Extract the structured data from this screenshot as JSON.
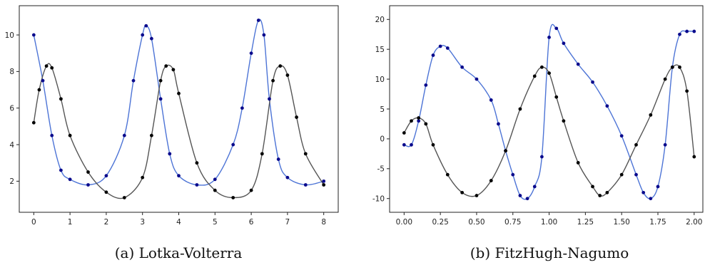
{
  "chart_data": [
    {
      "type": "scatter",
      "caption": "(a) Lotka-Volterra",
      "title": "",
      "xlabel": "",
      "ylabel": "",
      "xlim": [
        -0.4,
        8.4
      ],
      "ylim": [
        0.3,
        11.6
      ],
      "xticks": [
        "0",
        "1",
        "2",
        "3",
        "4",
        "5",
        "6",
        "7",
        "8"
      ],
      "yticks": [
        "2",
        "4",
        "6",
        "8",
        "10"
      ],
      "grid": false,
      "colors": {
        "blue_points": "#0a0a8c",
        "blue_line": "#4d74d6",
        "black_points": "#000000",
        "black_line": "#555555"
      },
      "series": [
        {
          "color": "blue",
          "x": [
            0,
            0.25,
            0.5,
            0.75,
            1,
            1.5,
            2,
            2.5,
            2.75,
            3,
            3.1,
            3.25,
            3.5,
            3.75,
            4,
            4.5,
            5,
            5.5,
            5.75,
            6,
            6.2,
            6.35,
            6.5,
            6.75,
            7,
            7.5,
            8
          ],
          "y": [
            10,
            7.5,
            4.5,
            2.6,
            2.1,
            1.8,
            2.3,
            4.5,
            7.5,
            10,
            10.5,
            9.8,
            6.5,
            3.5,
            2.3,
            1.8,
            2.1,
            4.0,
            6.0,
            9.0,
            10.8,
            10.0,
            6.5,
            3.2,
            2.2,
            1.8,
            2.0
          ]
        },
        {
          "color": "black",
          "x": [
            0,
            0.15,
            0.35,
            0.5,
            0.75,
            1,
            1.5,
            2,
            2.5,
            3,
            3.25,
            3.5,
            3.65,
            3.85,
            4,
            4.5,
            5,
            5.5,
            6,
            6.3,
            6.6,
            6.8,
            7,
            7.25,
            7.5,
            8
          ],
          "y": [
            5.2,
            7.0,
            8.3,
            8.2,
            6.5,
            4.5,
            2.5,
            1.4,
            1.1,
            2.2,
            4.5,
            7.5,
            8.3,
            8.1,
            6.8,
            3.0,
            1.5,
            1.1,
            1.5,
            3.5,
            7.5,
            8.3,
            7.8,
            5.5,
            3.5,
            1.8
          ]
        }
      ]
    },
    {
      "type": "scatter",
      "caption": "(b) FitzHugh-Nagumo",
      "title": "",
      "xlabel": "",
      "ylabel": "",
      "xlim": [
        -0.1,
        2.06
      ],
      "ylim": [
        -12.3,
        22.3
      ],
      "xticks": [
        "0.00",
        "0.25",
        "0.50",
        "0.75",
        "1.00",
        "1.25",
        "1.50",
        "1.75",
        "2.00"
      ],
      "yticks": [
        "20",
        "15",
        "10",
        "5",
        "0",
        "-5",
        "-10"
      ],
      "grid": false,
      "colors": {
        "blue_points": "#0a0a8c",
        "blue_line": "#4d74d6",
        "black_points": "#000000",
        "black_line": "#555555"
      },
      "series": [
        {
          "color": "blue",
          "x": [
            0,
            0.05,
            0.1,
            0.15,
            0.2,
            0.25,
            0.3,
            0.4,
            0.5,
            0.6,
            0.65,
            0.7,
            0.75,
            0.8,
            0.85,
            0.9,
            0.95,
            1.0,
            1.05,
            1.1,
            1.2,
            1.3,
            1.4,
            1.5,
            1.6,
            1.65,
            1.7,
            1.75,
            1.8,
            1.85,
            1.9,
            1.95,
            2.0
          ],
          "y": [
            -1,
            -1,
            3,
            9,
            14,
            15.5,
            15.2,
            12,
            10,
            6.5,
            2.5,
            -2,
            -6,
            -9.5,
            -10,
            -8,
            -3,
            17,
            18.5,
            16,
            12.5,
            9.5,
            5.5,
            0.5,
            -6,
            -9,
            -10,
            -8,
            -1,
            12,
            17.5,
            18,
            18
          ]
        },
        {
          "color": "black",
          "x": [
            0,
            0.05,
            0.1,
            0.15,
            0.2,
            0.3,
            0.4,
            0.5,
            0.6,
            0.7,
            0.8,
            0.9,
            0.95,
            1.0,
            1.05,
            1.1,
            1.2,
            1.3,
            1.35,
            1.4,
            1.5,
            1.6,
            1.7,
            1.8,
            1.85,
            1.9,
            1.95,
            2.0
          ],
          "y": [
            1,
            3,
            3.5,
            2.5,
            -1,
            -6,
            -9,
            -9.5,
            -7,
            -2,
            5,
            10.5,
            12,
            11,
            7,
            3,
            -4,
            -8,
            -9.5,
            -9,
            -6,
            -1,
            4,
            10,
            12,
            12,
            8,
            -3
          ]
        }
      ]
    }
  ]
}
